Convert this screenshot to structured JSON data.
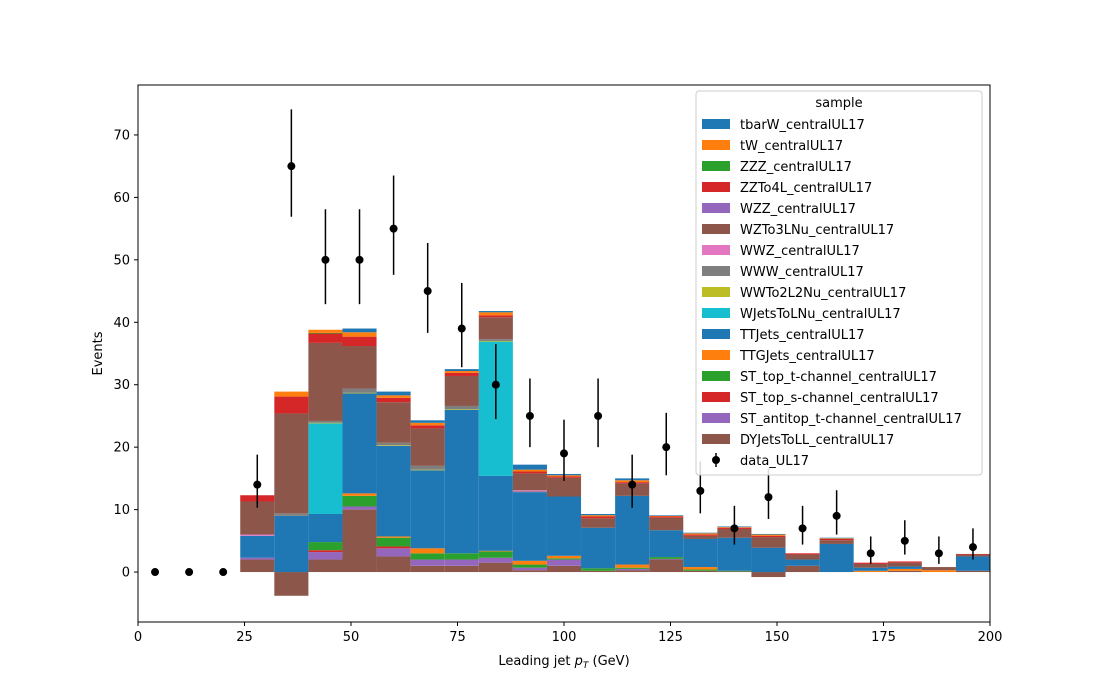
{
  "chart_data": {
    "type": "bar",
    "subtype": "stacked-histogram-with-data-points",
    "xlabel": "Leading jet  p_T (GeV)",
    "xlabel_parts": [
      "Leading jet  ",
      "p",
      "T",
      " (GeV)"
    ],
    "ylabel": "Events",
    "xlim": [
      0,
      200
    ],
    "ylim": [
      -8,
      78
    ],
    "xticks": [
      0,
      25,
      50,
      75,
      100,
      125,
      150,
      175,
      200
    ],
    "yticks": [
      0,
      10,
      20,
      30,
      40,
      50,
      60,
      70
    ],
    "bin_edges": [
      24,
      32,
      40,
      48,
      56,
      64,
      72,
      80,
      88,
      96,
      104,
      112,
      120,
      128,
      136,
      144,
      152,
      160,
      168,
      176,
      184,
      192,
      200
    ],
    "legend_title": "sample",
    "legend_position": "top-right",
    "series": [
      {
        "name": "DYJetsToLL_centralUL17",
        "color": "#8c564b",
        "values": [
          2,
          -3.8,
          2,
          10,
          2.5,
          1,
          1,
          1.5,
          0.3,
          1,
          0.2,
          0.3,
          2,
          0.2,
          0.1,
          -0.8,
          1,
          0,
          0,
          0.2,
          0,
          0.2
        ]
      },
      {
        "name": "ST_antitop_t-channel_centralUL17",
        "color": "#9467bd",
        "values": [
          0.3,
          0,
          1.2,
          0.5,
          1.3,
          1,
          1,
          0.8,
          0.4,
          1,
          0,
          0.2,
          0.1,
          0,
          0,
          0,
          0,
          0,
          0,
          0,
          0,
          0
        ]
      },
      {
        "name": "ST_top_s-channel_centralUL17",
        "color": "#d62728",
        "values": [
          0,
          0,
          0.3,
          0,
          0.3,
          0,
          0,
          0,
          0,
          0,
          0,
          0,
          0,
          0,
          0,
          0,
          0,
          0,
          0,
          0,
          0,
          0
        ]
      },
      {
        "name": "ST_top_t-channel_centralUL17",
        "color": "#2ca02c",
        "values": [
          0,
          0,
          1.3,
          1.7,
          1.4,
          1,
          1,
          1,
          0.5,
          0.2,
          0.4,
          0.2,
          0.3,
          0.2,
          0.1,
          0,
          0,
          0,
          0,
          0,
          0,
          0
        ]
      },
      {
        "name": "TTGJets_centralUL17",
        "color": "#ff7f0e",
        "values": [
          0,
          0,
          0,
          0.4,
          0.2,
          0.8,
          0,
          0.1,
          0.6,
          0.4,
          0,
          0.5,
          0,
          0.4,
          0,
          0,
          0,
          0,
          0.2,
          0.3,
          0.3,
          0
        ]
      },
      {
        "name": "TTJets_centralUL17",
        "color": "#1f77b4",
        "values": [
          3.5,
          9,
          4.5,
          16,
          14.5,
          12.5,
          23,
          12,
          11,
          9.5,
          6.5,
          11,
          4.3,
          4.5,
          5.3,
          3.9,
          1,
          4.5,
          0.5,
          0.4,
          0,
          2.3
        ]
      },
      {
        "name": "WJetsToLNu_centralUL17",
        "color": "#17becf",
        "values": [
          0,
          0,
          14.5,
          0,
          0,
          0,
          0,
          21.5,
          0,
          0,
          0,
          0,
          0,
          0,
          0,
          0,
          0,
          0,
          0,
          0,
          0,
          0
        ]
      },
      {
        "name": "WWTo2L2Nu_centralUL17",
        "color": "#bcbd22",
        "values": [
          0,
          0,
          0.1,
          0.1,
          0.1,
          0.1,
          0.1,
          0.1,
          0,
          0,
          0,
          0,
          0,
          0,
          0,
          0,
          0,
          0,
          0,
          0,
          0,
          0
        ]
      },
      {
        "name": "WWW_centralUL17",
        "color": "#7f7f7f",
        "values": [
          0,
          0.4,
          0.3,
          0.7,
          0.4,
          0.6,
          0.5,
          0.3,
          0.1,
          0,
          0,
          0,
          0,
          0,
          0,
          0,
          0,
          0,
          0,
          0,
          0,
          0
        ]
      },
      {
        "name": "WWZ_centralUL17",
        "color": "#e377c2",
        "values": [
          0.2,
          0,
          0,
          0,
          0,
          0,
          0,
          0,
          0.2,
          0,
          0,
          0,
          0,
          0,
          0,
          0,
          0,
          0,
          0,
          0,
          0,
          0
        ]
      },
      {
        "name": "WZTo3LNu_centralUL17",
        "color": "#8c564b",
        "values": [
          5.3,
          16,
          12.5,
          6.8,
          6.5,
          6,
          4.8,
          3.5,
          2.7,
          3,
          1.5,
          2,
          2,
          0.5,
          1.4,
          1.7,
          0.8,
          0.6,
          0.6,
          0.6,
          0.5,
          0.3
        ]
      },
      {
        "name": "WZZ_centralUL17",
        "color": "#9467bd",
        "values": [
          0,
          0,
          0,
          0,
          0,
          0,
          0,
          0,
          0,
          0,
          0,
          0,
          0,
          0,
          0,
          0,
          0,
          0,
          0,
          0,
          0,
          0
        ]
      },
      {
        "name": "ZZTo4L_centralUL17",
        "color": "#d62728",
        "values": [
          1,
          2.7,
          1.5,
          1.5,
          0.7,
          0.5,
          0.5,
          0.3,
          0.3,
          0.2,
          0.3,
          0.2,
          0.2,
          0.2,
          0.2,
          0.2,
          0.2,
          0.2,
          0.2,
          0.2,
          0,
          0.1
        ]
      },
      {
        "name": "ZZZ_centralUL17",
        "color": "#2ca02c",
        "values": [
          0,
          0,
          0.1,
          0,
          0,
          0,
          0,
          0,
          0,
          0,
          0,
          0,
          0,
          0,
          0,
          0,
          0,
          0,
          0,
          0,
          0,
          0
        ]
      },
      {
        "name": "tW_centralUL17",
        "color": "#ff7f0e",
        "values": [
          0,
          0.8,
          0.5,
          0.7,
          0.4,
          0.4,
          0.3,
          0.5,
          0.3,
          0.2,
          0.2,
          0.3,
          0.1,
          0.2,
          0.1,
          0.2,
          0,
          0.1,
          0,
          0,
          0,
          0
        ]
      },
      {
        "name": "tbarW_centralUL17",
        "color": "#1f77b4",
        "values": [
          0,
          0,
          0,
          0.6,
          0.6,
          0.4,
          0.3,
          0.2,
          0.8,
          0.2,
          0.2,
          0.3,
          0.1,
          0.1,
          0.1,
          0.1,
          0,
          0.1,
          0,
          0,
          0,
          0
        ]
      }
    ],
    "legend_order": [
      "tbarW_centralUL17",
      "tW_centralUL17",
      "ZZZ_centralUL17",
      "ZZTo4L_centralUL17",
      "WZZ_centralUL17",
      "WZTo3LNu_centralUL17",
      "WWZ_centralUL17",
      "WWW_centralUL17",
      "WWTo2L2Nu_centralUL17",
      "WJetsToLNu_centralUL17",
      "TTJets_centralUL17",
      "TTGJets_centralUL17",
      "ST_top_t-channel_centralUL17",
      "ST_top_s-channel_centralUL17",
      "ST_antitop_t-channel_centralUL17",
      "DYJetsToLL_centralUL17"
    ],
    "data_points": {
      "name": "data_UL17",
      "color": "#000000",
      "x": [
        4,
        12,
        20,
        28,
        36,
        44,
        52,
        60,
        68,
        76,
        84,
        92,
        100,
        108,
        116,
        124,
        132,
        140,
        148,
        156,
        164,
        172,
        180,
        188,
        196
      ],
      "y": [
        0,
        0,
        0,
        14,
        65,
        50,
        50,
        55,
        45,
        39,
        30,
        25,
        19,
        25,
        14,
        20,
        13,
        7,
        12,
        7,
        9,
        3,
        5,
        3,
        4
      ],
      "err_low": [
        0,
        0,
        0,
        3.7,
        8.1,
        7.1,
        7.1,
        7.4,
        6.7,
        6.2,
        5.5,
        5.0,
        4.4,
        5.0,
        3.7,
        4.5,
        3.6,
        2.6,
        3.5,
        2.6,
        3.0,
        1.7,
        2.2,
        1.7,
        2.0
      ],
      "err_high": [
        0,
        0,
        0,
        4.8,
        9.1,
        8.1,
        8.1,
        8.5,
        7.7,
        7.3,
        6.5,
        6.0,
        5.4,
        6.0,
        4.8,
        5.5,
        4.7,
        3.6,
        4.6,
        3.6,
        4.1,
        2.7,
        3.3,
        2.7,
        3.0
      ]
    }
  }
}
